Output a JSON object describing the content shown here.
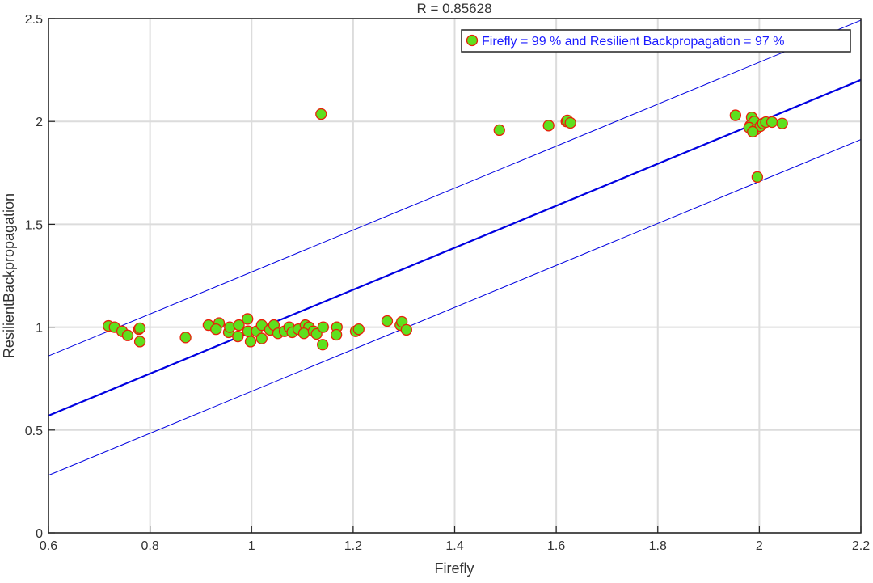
{
  "chart_data": {
    "type": "scatter",
    "title": "R =  0.85628",
    "xlabel": "Firefly",
    "ylabel": "ResilientBackpropagation",
    "xlim": [
      0.6,
      2.2
    ],
    "ylim": [
      0,
      2.5
    ],
    "xticks": [
      "0.6",
      "0.8",
      "1",
      "1.2",
      "1.4",
      "1.6",
      "1.8",
      "2",
      "2.2"
    ],
    "yticks": [
      "0",
      "0.5",
      "1",
      "1.5",
      "2",
      "2.5"
    ],
    "grid": true,
    "legend": {
      "label": "Firefly = 99 % and Resilient Backpropagation = 97 %",
      "placement": "top-right"
    },
    "colors": {
      "marker_fill": "#5ee01e",
      "marker_edge": "#e8200a",
      "fit_line": "#0000e0",
      "legend_text": "#1a1aff"
    },
    "fit_line": {
      "slope": 1.02,
      "intercept": -0.042
    },
    "confidence_band": {
      "offset": 0.29
    },
    "points": [
      [
        0.718,
        1.006
      ],
      [
        0.73,
        1.0
      ],
      [
        0.745,
        0.98
      ],
      [
        0.756,
        0.96
      ],
      [
        0.778,
        0.99
      ],
      [
        0.78,
        0.995
      ],
      [
        0.78,
        0.93
      ],
      [
        0.87,
        0.95
      ],
      [
        0.915,
        1.01
      ],
      [
        0.936,
        1.02
      ],
      [
        0.93,
        0.99
      ],
      [
        0.955,
        0.975
      ],
      [
        0.957,
        1.0
      ],
      [
        0.975,
        1.01
      ],
      [
        0.973,
        0.955
      ],
      [
        0.992,
        1.04
      ],
      [
        0.993,
        0.98
      ],
      [
        0.998,
        0.93
      ],
      [
        1.01,
        0.98
      ],
      [
        1.02,
        1.01
      ],
      [
        1.02,
        0.945
      ],
      [
        1.036,
        0.987
      ],
      [
        1.044,
        1.01
      ],
      [
        1.052,
        0.97
      ],
      [
        1.065,
        0.98
      ],
      [
        1.074,
        1.0
      ],
      [
        1.08,
        0.975
      ],
      [
        1.092,
        0.99
      ],
      [
        1.106,
        1.01
      ],
      [
        1.113,
        1.0
      ],
      [
        1.103,
        0.97
      ],
      [
        1.122,
        0.98
      ],
      [
        1.128,
        0.967
      ],
      [
        1.141,
        1.0
      ],
      [
        1.14,
        0.915
      ],
      [
        1.168,
        1.0
      ],
      [
        1.167,
        0.963
      ],
      [
        1.205,
        0.98
      ],
      [
        1.211,
        0.99
      ],
      [
        1.267,
        1.03
      ],
      [
        1.293,
        1.01
      ],
      [
        1.296,
        1.026
      ],
      [
        1.305,
        0.987
      ],
      [
        1.137,
        2.036
      ],
      [
        1.488,
        1.958
      ],
      [
        1.585,
        1.98
      ],
      [
        1.62,
        2.0
      ],
      [
        1.622,
        2.005
      ],
      [
        1.628,
        1.993
      ],
      [
        1.953,
        2.03
      ],
      [
        1.985,
        2.02
      ],
      [
        1.982,
        1.98
      ],
      [
        1.99,
        2.0
      ],
      [
        1.98,
        1.97
      ],
      [
        1.993,
        1.96
      ],
      [
        2.002,
        1.977
      ],
      [
        2.007,
        1.99
      ],
      [
        2.013,
        1.997
      ],
      [
        2.025,
        1.997
      ],
      [
        2.045,
        1.99
      ],
      [
        1.996,
        1.73
      ],
      [
        1.987,
        1.95
      ]
    ]
  }
}
